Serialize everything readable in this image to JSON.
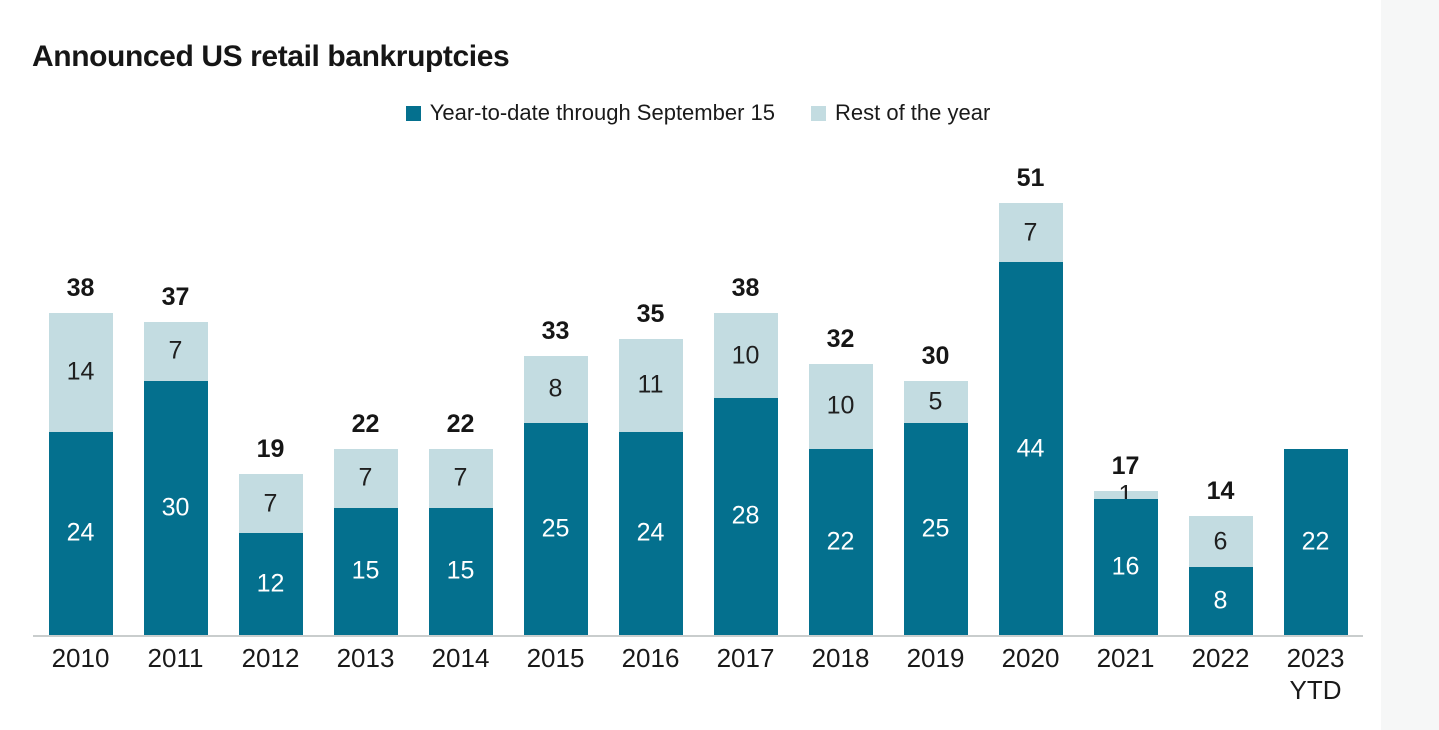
{
  "page": {
    "title": "Announced US retail bankruptcies"
  },
  "colors": {
    "ytd_bar": "#04708e",
    "rest_bar": "#c3dce1",
    "axis_line": "#c9cdcd",
    "label_on_dark": "#ffffff",
    "label_on_light": "#1f1f1f",
    "right_strip": "#f6f7f7"
  },
  "chart_data": {
    "type": "bar",
    "stacked": true,
    "title": "Announced US retail bankruptcies",
    "xlabel": "",
    "ylabel": "",
    "ylim": [
      0,
      57
    ],
    "grid": false,
    "legend_position": "top",
    "value_labels": "inside-segments",
    "categories": [
      "2010",
      "2011",
      "2012",
      "2013",
      "2014",
      "2015",
      "2016",
      "2017",
      "2018",
      "2019",
      "2020",
      "2021",
      "2022",
      "2023\nYTD"
    ],
    "series": [
      {
        "name": "Year-to-date through September 15",
        "color": "#04708e",
        "values": [
          24,
          30,
          12,
          15,
          15,
          25,
          24,
          28,
          22,
          25,
          44,
          16,
          8,
          22
        ]
      },
      {
        "name": "Rest of the year",
        "color": "#c3dce1",
        "values": [
          14,
          7,
          7,
          7,
          7,
          8,
          11,
          10,
          10,
          5,
          7,
          1,
          6,
          0
        ]
      }
    ],
    "totals": [
      38,
      37,
      19,
      22,
      22,
      33,
      35,
      38,
      32,
      30,
      51,
      17,
      14,
      null
    ]
  }
}
